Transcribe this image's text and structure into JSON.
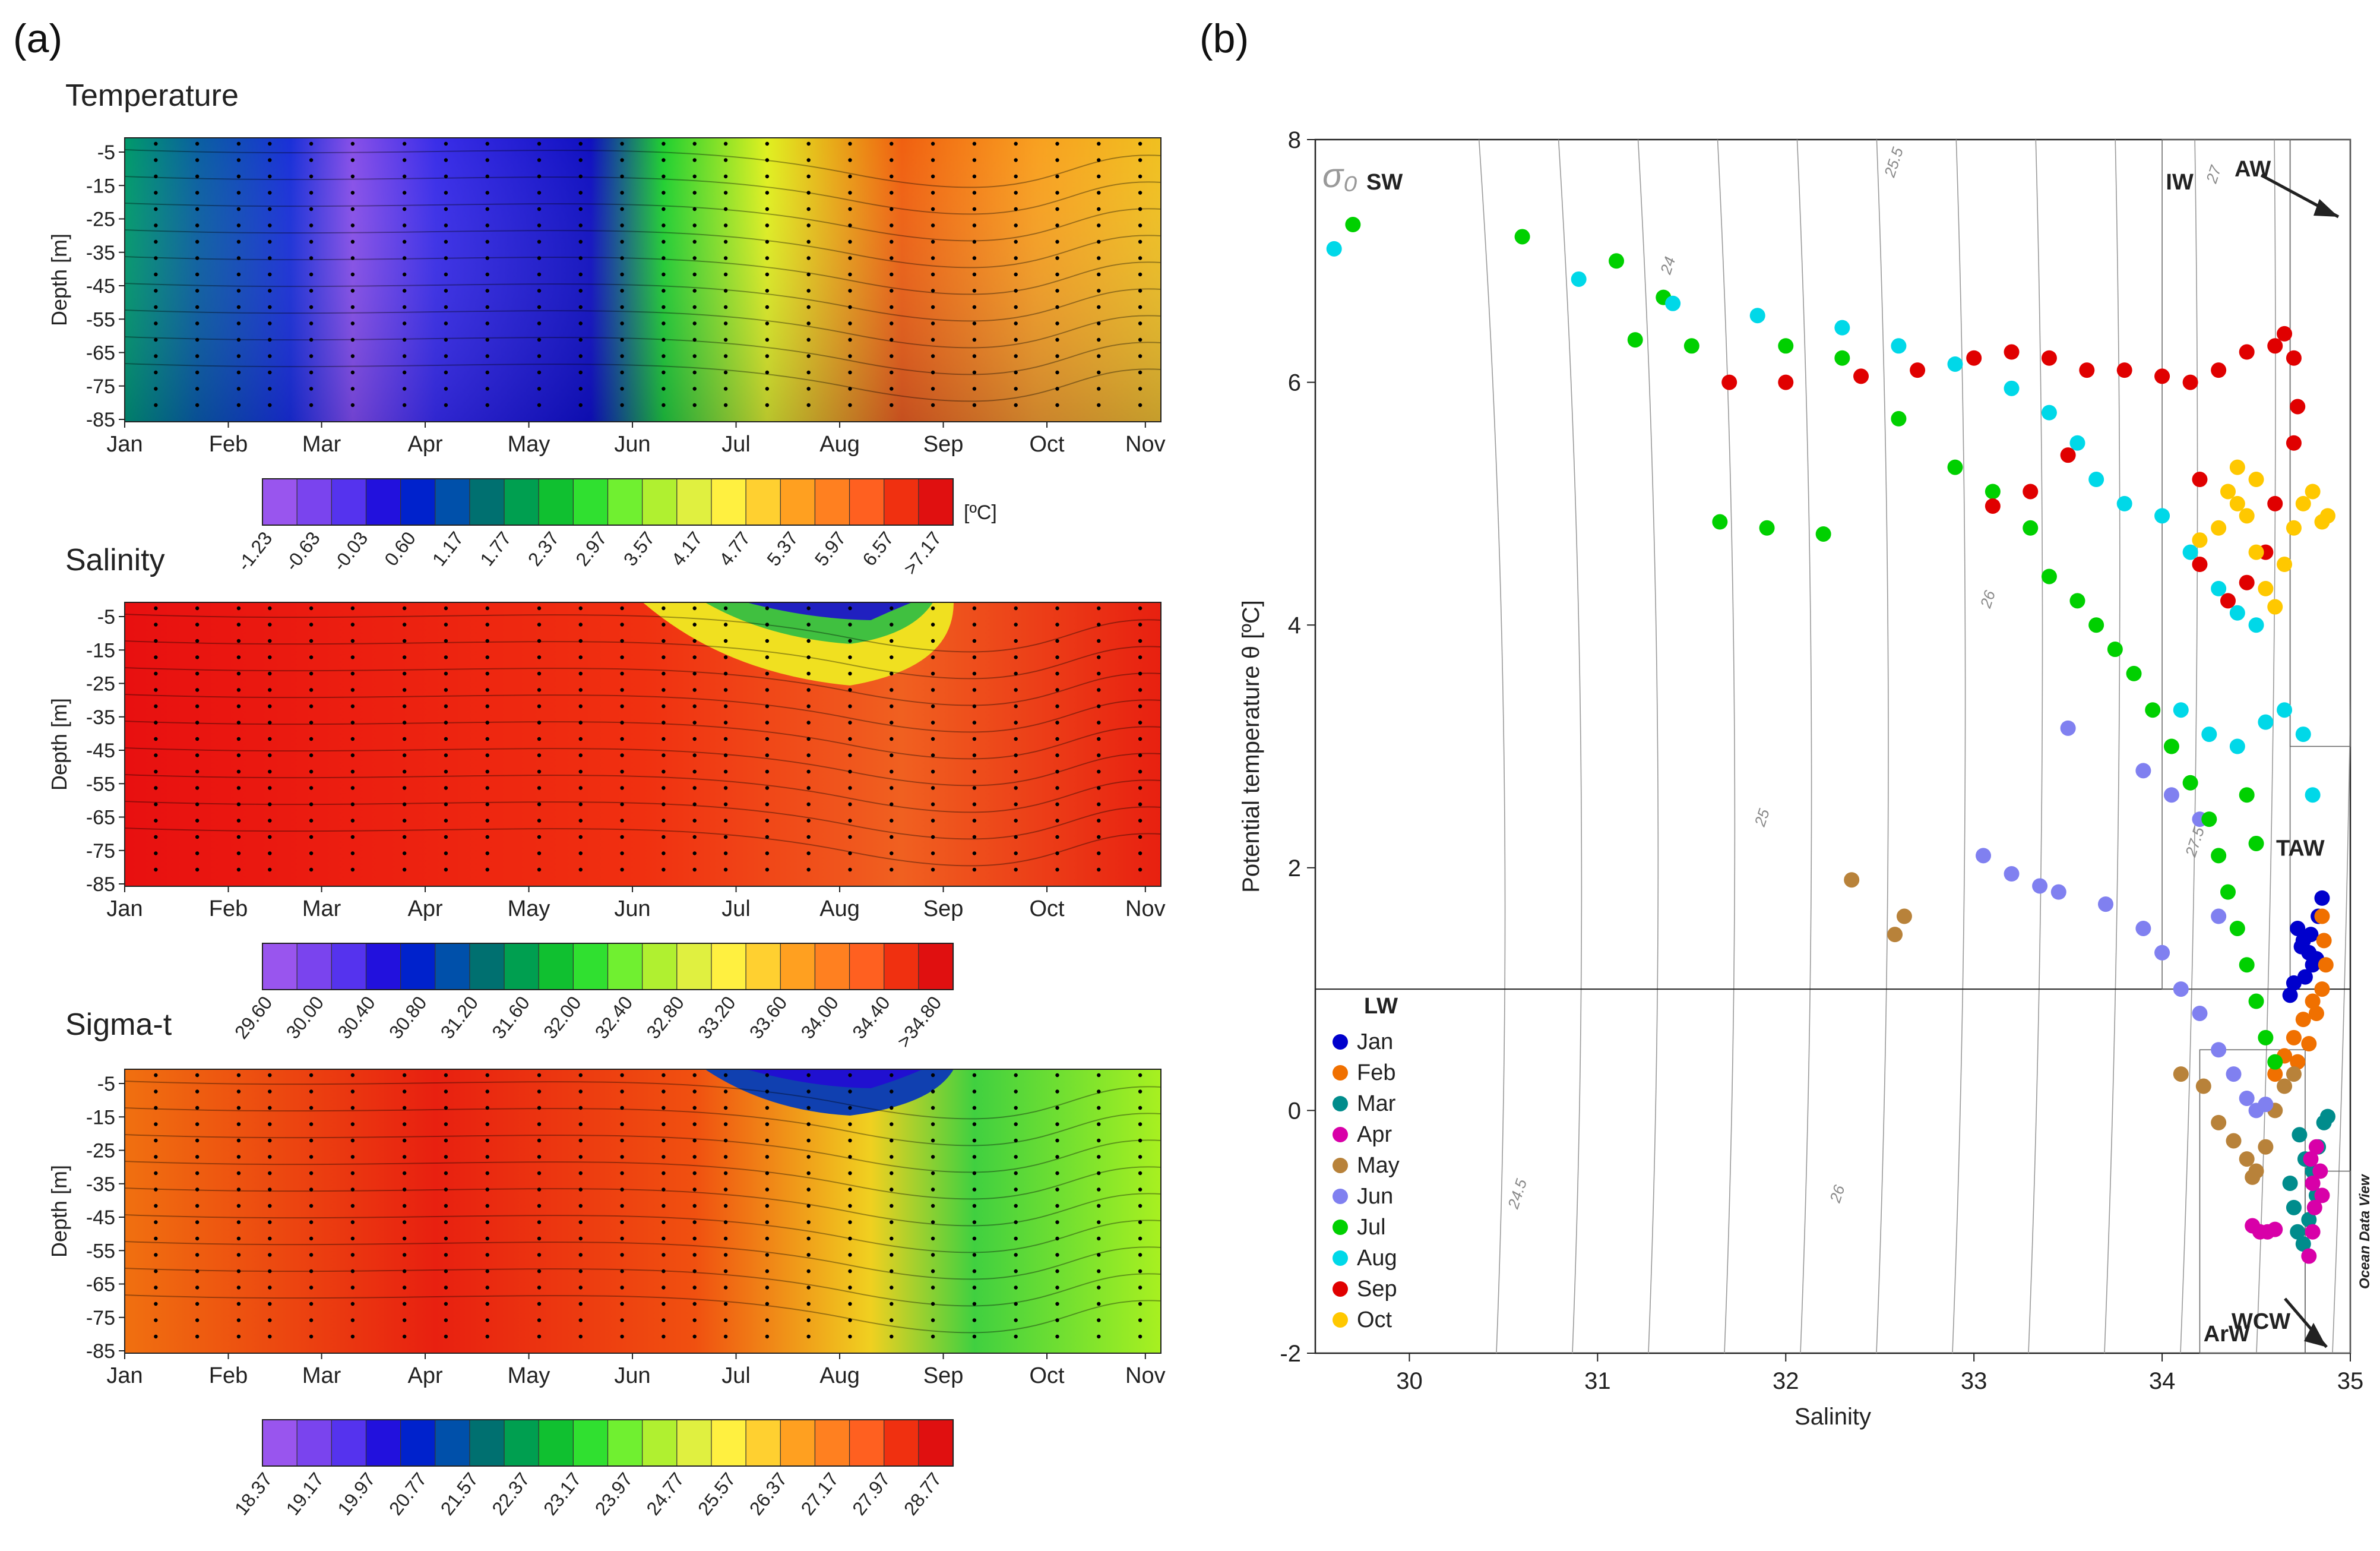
{
  "panels": {
    "a": "(a)",
    "b": "(b)"
  },
  "section_titles": {
    "temperature": "Temperature",
    "salinity": "Salinity",
    "sigma_t": "Sigma-t"
  },
  "months": [
    "Jan",
    "Feb",
    "Mar",
    "Apr",
    "May",
    "Jun",
    "Jul",
    "Aug",
    "Sep",
    "Oct",
    "Nov"
  ],
  "depth_label": "Depth [m]",
  "depth_ticks": [
    "-5",
    "-15",
    "-25",
    "-35",
    "-45",
    "-55",
    "-65",
    "-75",
    "-85"
  ],
  "colorbars": {
    "temperature": {
      "labels": [
        "-1.23",
        "-0.63",
        "-0.03",
        "0.60",
        "1.17",
        "1.77",
        "2.37",
        "2.97",
        "3.57",
        "4.17",
        "4.77",
        "5.37",
        "5.97",
        "6.57",
        ">7.17"
      ],
      "unit": "[ºC]"
    },
    "salinity": {
      "labels": [
        "29.60",
        "30.00",
        "30.40",
        "30.80",
        "31.20",
        "31.60",
        "32.00",
        "32.40",
        "32.80",
        "33.20",
        "33.60",
        "34.00",
        "34.40",
        ">34.80"
      ],
      "unit": ""
    },
    "sigma_t": {
      "labels": [
        "18.37",
        "19.17",
        "19.97",
        "20.77",
        "21.57",
        "22.37",
        "23.17",
        "23.97",
        "24.77",
        "25.57",
        "26.37",
        "27.17",
        "27.97",
        "28.77"
      ],
      "unit": ""
    }
  },
  "chart_data": [
    {
      "type": "heatmap",
      "title": "Temperature",
      "ylabel": "Depth [m]",
      "x": [
        "Jan",
        "Feb",
        "Mar",
        "Apr",
        "May",
        "Jun",
        "Jul",
        "Aug",
        "Sep",
        "Oct",
        "Nov"
      ],
      "y": [
        -5,
        -15,
        -25,
        -35,
        -45,
        -55,
        -65,
        -75,
        -85
      ],
      "colorbar_unit": "[ºC]",
      "colorbar_range": [
        -1.23,
        7.17
      ]
    },
    {
      "type": "heatmap",
      "title": "Salinity",
      "ylabel": "Depth [m]",
      "x": [
        "Jan",
        "Feb",
        "Mar",
        "Apr",
        "May",
        "Jun",
        "Jul",
        "Aug",
        "Sep",
        "Oct",
        "Nov"
      ],
      "y": [
        -5,
        -15,
        -25,
        -35,
        -45,
        -55,
        -65,
        -75,
        -85
      ],
      "colorbar_range": [
        29.6,
        34.8
      ]
    },
    {
      "type": "heatmap",
      "title": "Sigma-t",
      "ylabel": "Depth [m]",
      "x": [
        "Jan",
        "Feb",
        "Mar",
        "Apr",
        "May",
        "Jun",
        "Jul",
        "Aug",
        "Sep",
        "Oct",
        "Nov"
      ],
      "y": [
        -5,
        -15,
        -25,
        -35,
        -45,
        -55,
        -65,
        -75,
        -85
      ],
      "colorbar_range": [
        18.37,
        28.77
      ]
    },
    {
      "type": "scatter",
      "xlabel": "Salinity",
      "ylabel": "Potential temperature θ [ºC]",
      "xlim": [
        29.5,
        35
      ],
      "ylim": [
        -2,
        8
      ],
      "xticks": [
        "30",
        "31",
        "32",
        "33",
        "34",
        "35"
      ],
      "yticks": [
        "-2",
        "0",
        "2",
        "4",
        "6",
        "8"
      ],
      "sigma_symbol": "σ₀",
      "isopycnal_labels": [
        "24",
        "25.5",
        "27",
        "26",
        "25",
        "27.5",
        "24.5",
        "26"
      ],
      "water_masses": [
        "SW",
        "IW",
        "AW",
        "TAW",
        "LW",
        "WCW",
        "ArW"
      ],
      "watermark": "Ocean Data View",
      "legend_position": "bottom-left",
      "series": [
        {
          "name": "Jan",
          "color": "#0000cc",
          "points": [
            [
              34.72,
              1.5
            ],
            [
              34.75,
              1.4
            ],
            [
              34.78,
              1.3
            ],
            [
              34.8,
              1.2
            ],
            [
              34.83,
              1.6
            ],
            [
              34.85,
              1.75
            ],
            [
              34.76,
              1.1
            ],
            [
              34.7,
              1.05
            ],
            [
              34.68,
              0.95
            ],
            [
              34.74,
              1.35
            ],
            [
              34.79,
              1.45
            ],
            [
              34.82,
              1.25
            ]
          ]
        },
        {
          "name": "Feb",
          "color": "#f07000",
          "points": [
            [
              34.6,
              0.3
            ],
            [
              34.65,
              0.45
            ],
            [
              34.7,
              0.6
            ],
            [
              34.75,
              0.75
            ],
            [
              34.8,
              0.9
            ],
            [
              34.85,
              1.0
            ],
            [
              34.87,
              1.2
            ],
            [
              34.86,
              1.4
            ],
            [
              34.85,
              1.6
            ],
            [
              34.82,
              0.8
            ],
            [
              34.78,
              0.55
            ],
            [
              34.72,
              0.4
            ]
          ]
        },
        {
          "name": "Mar",
          "color": "#008c8c",
          "points": [
            [
              34.68,
              -0.6
            ],
            [
              34.7,
              -0.8
            ],
            [
              34.72,
              -1.0
            ],
            [
              34.75,
              -1.1
            ],
            [
              34.78,
              -0.9
            ],
            [
              34.8,
              -0.5
            ],
            [
              34.83,
              -0.3
            ],
            [
              34.86,
              -0.1
            ],
            [
              34.88,
              -0.05
            ],
            [
              34.82,
              -0.7
            ],
            [
              34.76,
              -0.4
            ],
            [
              34.73,
              -0.2
            ]
          ]
        },
        {
          "name": "Apr",
          "color": "#d800a8",
          "points": [
            [
              34.48,
              -0.95
            ],
            [
              34.52,
              -1.0
            ],
            [
              34.56,
              -1.0
            ],
            [
              34.6,
              -0.98
            ],
            [
              34.78,
              -1.2
            ],
            [
              34.8,
              -1.0
            ],
            [
              34.81,
              -0.8
            ],
            [
              34.8,
              -0.6
            ],
            [
              34.79,
              -0.4
            ],
            [
              34.82,
              -0.3
            ],
            [
              34.84,
              -0.5
            ],
            [
              34.85,
              -0.7
            ]
          ]
        },
        {
          "name": "May",
          "color": "#b8823a",
          "points": [
            [
              32.35,
              1.9
            ],
            [
              32.58,
              1.45
            ],
            [
              32.63,
              1.6
            ],
            [
              34.1,
              0.3
            ],
            [
              34.22,
              0.2
            ],
            [
              34.3,
              -0.1
            ],
            [
              34.38,
              -0.25
            ],
            [
              34.45,
              -0.4
            ],
            [
              34.5,
              -0.5
            ],
            [
              34.55,
              -0.3
            ],
            [
              34.6,
              0.0
            ],
            [
              34.65,
              0.2
            ],
            [
              34.7,
              0.3
            ],
            [
              34.48,
              -0.55
            ]
          ]
        },
        {
          "name": "Jun",
          "color": "#8080f0",
          "points": [
            [
              33.05,
              2.1
            ],
            [
              33.2,
              1.95
            ],
            [
              33.35,
              1.85
            ],
            [
              33.45,
              1.8
            ],
            [
              33.5,
              3.15
            ],
            [
              33.7,
              1.7
            ],
            [
              33.9,
              1.5
            ],
            [
              34.0,
              1.3
            ],
            [
              34.1,
              1.0
            ],
            [
              34.2,
              0.8
            ],
            [
              34.3,
              0.5
            ],
            [
              34.38,
              0.3
            ],
            [
              34.45,
              0.1
            ],
            [
              34.5,
              0.0
            ],
            [
              34.55,
              0.05
            ],
            [
              34.2,
              2.4
            ],
            [
              34.3,
              1.6
            ],
            [
              33.9,
              2.8
            ],
            [
              34.05,
              2.6
            ]
          ]
        },
        {
          "name": "Jul",
          "color": "#00d000",
          "points": [
            [
              29.7,
              7.3
            ],
            [
              30.6,
              7.2
            ],
            [
              31.1,
              7.0
            ],
            [
              31.35,
              6.7
            ],
            [
              31.2,
              6.35
            ],
            [
              31.5,
              6.3
            ],
            [
              31.65,
              4.85
            ],
            [
              31.9,
              4.8
            ],
            [
              32.2,
              4.75
            ],
            [
              32.0,
              6.3
            ],
            [
              32.3,
              6.2
            ],
            [
              32.6,
              5.7
            ],
            [
              32.9,
              5.3
            ],
            [
              33.1,
              5.1
            ],
            [
              33.3,
              4.8
            ],
            [
              33.4,
              4.4
            ],
            [
              33.55,
              4.2
            ],
            [
              33.65,
              4.0
            ],
            [
              33.75,
              3.8
            ],
            [
              33.85,
              3.6
            ],
            [
              33.95,
              3.3
            ],
            [
              34.05,
              3.0
            ],
            [
              34.15,
              2.7
            ],
            [
              34.25,
              2.4
            ],
            [
              34.3,
              2.1
            ],
            [
              34.35,
              1.8
            ],
            [
              34.4,
              1.5
            ],
            [
              34.45,
              1.2
            ],
            [
              34.5,
              0.9
            ],
            [
              34.55,
              0.6
            ],
            [
              34.6,
              0.4
            ],
            [
              34.45,
              2.6
            ],
            [
              34.5,
              2.2
            ]
          ]
        },
        {
          "name": "Aug",
          "color": "#00d8e8",
          "points": [
            [
              29.6,
              7.1
            ],
            [
              30.9,
              6.85
            ],
            [
              31.4,
              6.65
            ],
            [
              31.85,
              6.55
            ],
            [
              32.3,
              6.45
            ],
            [
              32.6,
              6.3
            ],
            [
              32.9,
              6.15
            ],
            [
              33.2,
              5.95
            ],
            [
              33.4,
              5.75
            ],
            [
              33.55,
              5.5
            ],
            [
              33.65,
              5.2
            ],
            [
              33.8,
              5.0
            ],
            [
              34.0,
              4.9
            ],
            [
              34.15,
              4.6
            ],
            [
              34.3,
              4.3
            ],
            [
              34.4,
              4.1
            ],
            [
              34.5,
              4.0
            ],
            [
              34.1,
              3.3
            ],
            [
              34.25,
              3.1
            ],
            [
              34.4,
              3.0
            ],
            [
              34.55,
              3.2
            ],
            [
              34.65,
              3.3
            ],
            [
              34.75,
              3.1
            ],
            [
              34.8,
              2.6
            ]
          ]
        },
        {
          "name": "Sep",
          "color": "#e00000",
          "points": [
            [
              31.7,
              6.0
            ],
            [
              32.0,
              6.0
            ],
            [
              32.4,
              6.05
            ],
            [
              32.7,
              6.1
            ],
            [
              33.0,
              6.2
            ],
            [
              33.2,
              6.25
            ],
            [
              33.4,
              6.2
            ],
            [
              33.6,
              6.1
            ],
            [
              33.8,
              6.1
            ],
            [
              34.0,
              6.05
            ],
            [
              34.15,
              6.0
            ],
            [
              34.3,
              6.1
            ],
            [
              34.45,
              6.25
            ],
            [
              34.6,
              6.3
            ],
            [
              34.65,
              6.4
            ],
            [
              34.7,
              6.2
            ],
            [
              34.72,
              5.8
            ],
            [
              34.7,
              5.5
            ],
            [
              34.6,
              5.0
            ],
            [
              34.55,
              4.6
            ],
            [
              34.45,
              4.35
            ],
            [
              34.35,
              4.2
            ],
            [
              34.2,
              4.5
            ],
            [
              34.2,
              5.2
            ],
            [
              33.5,
              5.4
            ],
            [
              33.3,
              5.1
            ],
            [
              33.1,
              4.98
            ]
          ]
        },
        {
          "name": "Oct",
          "color": "#ffc800",
          "points": [
            [
              34.2,
              4.7
            ],
            [
              34.3,
              4.8
            ],
            [
              34.35,
              5.1
            ],
            [
              34.4,
              5.3
            ],
            [
              34.45,
              4.9
            ],
            [
              34.5,
              4.6
            ],
            [
              34.55,
              4.3
            ],
            [
              34.6,
              4.15
            ],
            [
              34.65,
              4.5
            ],
            [
              34.7,
              4.8
            ],
            [
              34.75,
              5.0
            ],
            [
              34.8,
              5.1
            ],
            [
              34.85,
              4.85
            ],
            [
              34.88,
              4.9
            ],
            [
              34.5,
              5.2
            ],
            [
              34.4,
              5.0
            ]
          ]
        }
      ]
    }
  ]
}
